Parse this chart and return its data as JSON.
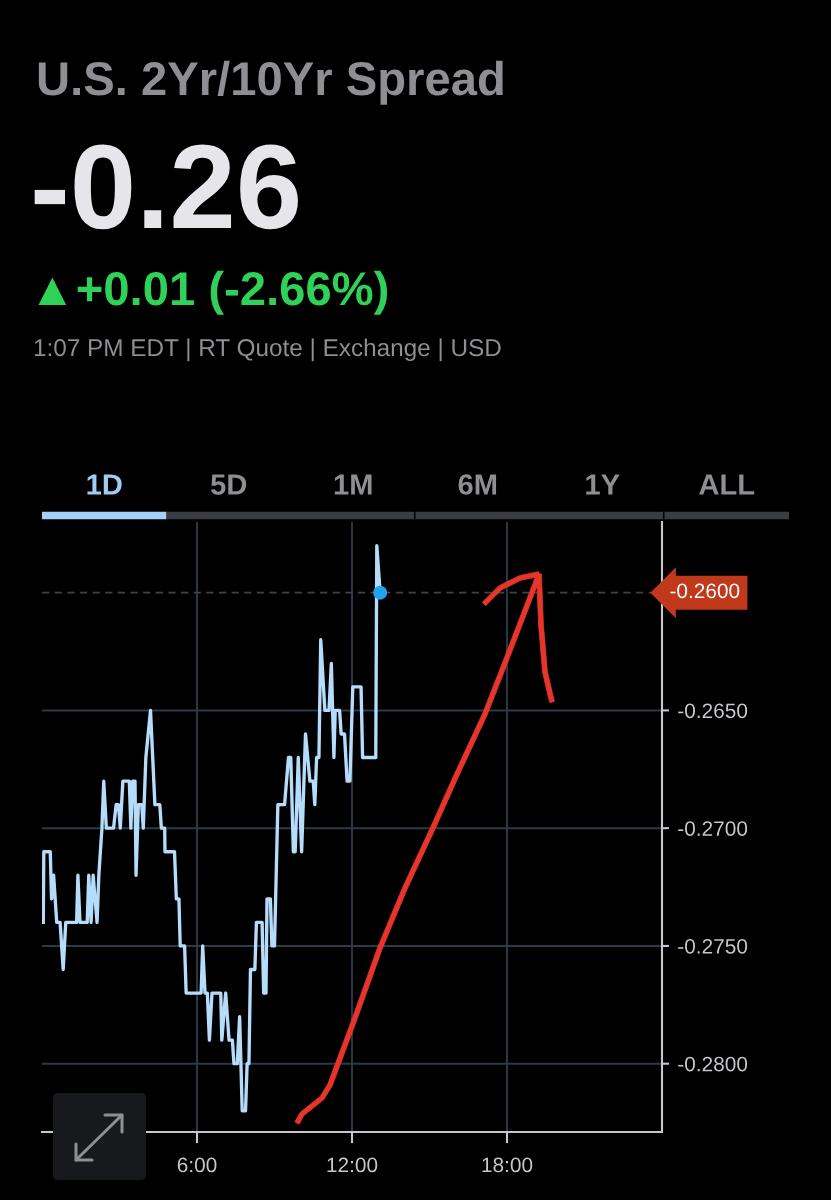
{
  "chart_data": {
    "type": "line",
    "title": "U.S. 2Yr/10Yr Spread",
    "subtitle": "-0.26",
    "annotations": [
      "▲+0.01 (-2.66%)",
      "1:07 PM EDT | RT Quote | Exchange | USD",
      "1D",
      "5D",
      "1M",
      "6M",
      "1Y",
      "ALL"
    ],
    "series": [
      {
        "color": "#b6dcfb",
        "x": [
          0.05,
          0.07,
          0.32,
          0.37,
          0.45,
          0.57,
          0.7,
          0.82,
          0.92,
          1.34,
          1.39,
          1.47,
          1.75,
          1.81,
          1.9,
          1.98,
          2.13,
          2.2,
          2.32,
          2.39,
          2.49,
          2.77,
          2.87,
          2.96,
          3.03,
          3.13,
          3.38,
          3.44,
          3.51,
          3.6,
          3.64,
          3.73,
          3.86,
          3.92,
          4.02,
          4.2,
          4.37,
          4.56,
          4.62,
          4.75,
          4.76,
          5.13,
          5.2,
          5.3,
          5.35,
          5.52,
          5.58,
          6.16,
          6.22,
          6.31,
          6.4,
          6.48,
          6.58,
          6.92,
          6.96,
          7.11,
          7.24,
          7.37,
          7.43,
          7.56,
          7.65,
          7.75,
          7.88,
          7.94,
          8.01,
          8.07,
          8.24,
          8.3,
          8.52,
          8.58,
          8.67,
          8.71,
          8.84,
          8.9,
          9.0,
          9.13,
          9.39,
          9.54,
          9.63,
          9.73,
          9.8,
          9.92,
          10.05,
          10.2,
          10.37,
          10.5,
          10.56,
          10.63,
          10.72,
          10.79,
          10.95,
          11.11,
          11.2,
          11.3,
          11.35,
          11.52,
          11.58,
          11.71,
          11.81,
          11.92,
          12.03,
          12.35,
          12.41,
          12.92,
          12.96,
          13.09
        ],
        "values": [
          -0.274,
          -0.271,
          -0.271,
          -0.273,
          -0.272,
          -0.274,
          -0.274,
          -0.276,
          -0.274,
          -0.274,
          -0.272,
          -0.274,
          -0.274,
          -0.272,
          -0.274,
          -0.272,
          -0.274,
          -0.272,
          -0.27,
          -0.268,
          -0.27,
          -0.27,
          -0.269,
          -0.269,
          -0.27,
          -0.268,
          -0.268,
          -0.27,
          -0.268,
          -0.268,
          -0.272,
          -0.269,
          -0.269,
          -0.27,
          -0.267,
          -0.265,
          -0.269,
          -0.269,
          -0.27,
          -0.27,
          -0.271,
          -0.271,
          -0.273,
          -0.273,
          -0.275,
          -0.275,
          -0.277,
          -0.277,
          -0.275,
          -0.277,
          -0.277,
          -0.279,
          -0.277,
          -0.277,
          -0.279,
          -0.277,
          -0.279,
          -0.279,
          -0.28,
          -0.28,
          -0.278,
          -0.282,
          -0.282,
          -0.28,
          -0.28,
          -0.276,
          -0.276,
          -0.274,
          -0.274,
          -0.277,
          -0.277,
          -0.273,
          -0.273,
          -0.275,
          -0.275,
          -0.269,
          -0.269,
          -0.267,
          -0.267,
          -0.271,
          -0.271,
          -0.267,
          -0.271,
          -0.266,
          -0.268,
          -0.268,
          -0.269,
          -0.267,
          -0.267,
          -0.262,
          -0.265,
          -0.265,
          -0.263,
          -0.267,
          -0.265,
          -0.265,
          -0.266,
          -0.266,
          -0.268,
          -0.268,
          -0.264,
          -0.264,
          -0.267,
          -0.267,
          -0.258,
          -0.26
        ]
      },
      {
        "type": "scatter",
        "color": "#1fa5ee",
        "marker": "circle",
        "x": [
          13.09
        ],
        "values": [
          -0.26
        ]
      }
    ],
    "xlim": [
      0,
      24
    ],
    "xticks": [
      {
        "value": 6,
        "label": "6:00"
      },
      {
        "value": 12,
        "label": "12:00"
      },
      {
        "value": 18,
        "label": "18:00"
      }
    ],
    "ylim": [
      -0.2829,
      -0.257
    ],
    "yticks": [
      {
        "value": -0.28,
        "label": "-0.2800"
      },
      {
        "value": -0.275,
        "label": "-0.2750"
      },
      {
        "value": -0.27,
        "label": "-0.2700"
      },
      {
        "value": -0.265,
        "label": "-0.2650"
      }
    ],
    "grid": true,
    "ref_lines": [
      {
        "axis": "y",
        "value": -0.26,
        "label": "-0.2600",
        "line_style": "dashed"
      }
    ]
  }
}
